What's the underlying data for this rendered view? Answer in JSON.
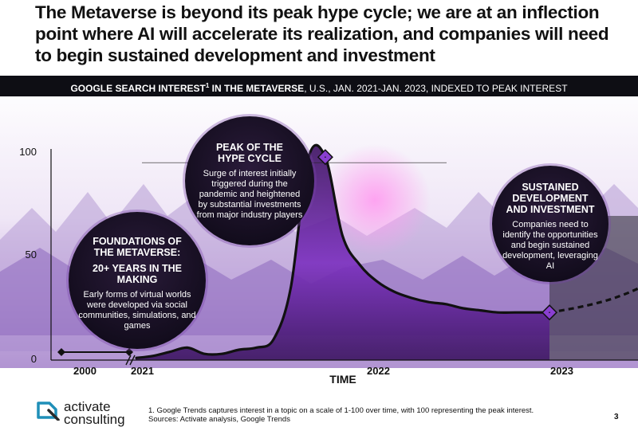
{
  "headline": "The Metaverse is beyond its peak hype cycle; we are at an inflection point where AI will accelerate its realization, and companies will need to begin sustained development and investment",
  "chart_data": {
    "type": "line",
    "title_bold": "GOOGLE SEARCH INTEREST",
    "title_sup": "1",
    "title_bold2": " IN THE METAVERSE",
    "title_rest": ", U.S., JAN. 2021-JAN. 2023, INDEXED TO PEAK INTEREST",
    "xlabel": "TIME",
    "x_ticks": [
      "2000",
      "2021",
      "2022",
      "2023"
    ],
    "y_ticks": [
      "0",
      "50",
      "100"
    ],
    "ylim": [
      0,
      100
    ],
    "series": [
      {
        "x": [
          "2021-01",
          "2021-02",
          "2021-03",
          "2021-04",
          "2021-05",
          "2021-06",
          "2021-07",
          "2021-08",
          "2021-09",
          "2021-10",
          "2021-11",
          "2021-12",
          "2022-01",
          "2022-02",
          "2022-03",
          "2022-04",
          "2022-05",
          "2022-06",
          "2022-07",
          "2022-08",
          "2022-09",
          "2022-10",
          "2022-11",
          "2022-12",
          "2023-01"
        ],
        "values": [
          1,
          2,
          4,
          6,
          3,
          3,
          5,
          6,
          10,
          35,
          97,
          98,
          60,
          46,
          38,
          33,
          30,
          28,
          27,
          25,
          24,
          23,
          23,
          23,
          23
        ]
      }
    ],
    "projection_label": "dashed trend continuing upward after 2023",
    "annotations": [
      {
        "heading": "FOUNDATIONS OF THE METAVERSE: 20+ YEARS IN THE MAKING",
        "text": "Early forms of virtual worlds were developed via social communities, simulations, and games"
      },
      {
        "heading": "PEAK OF THE HYPE CYCLE",
        "text": "Surge of interest initially triggered during the pandemic and heightened by substantial investments from major industry players"
      },
      {
        "heading": "SUSTAINED DEVELOPMENT AND INVESTMENT",
        "text": "Companies need to identify the opportunities and begin sustained development, leveraging AI"
      }
    ]
  },
  "bubbles": {
    "foundations": {
      "h1": "FOUNDATIONS OF",
      "h2": "THE METAVERSE:",
      "h3": "20+ YEARS IN THE MAKING",
      "text": "Early forms of virtual worlds were developed via social communities, simulations, and games"
    },
    "peak": {
      "h1": "PEAK OF THE",
      "h2": "HYPE CYCLE",
      "text": "Surge of interest initially triggered during the pandemic and heightened by substantial investments from major industry players"
    },
    "sustained": {
      "h1": "SUSTAINED",
      "h2": "DEVELOPMENT",
      "h3": "AND INVESTMENT",
      "text": "Companies need to identify the opportunities and begin sustained development, leveraging AI"
    }
  },
  "logo": {
    "line1": "activate",
    "line2": "consulting"
  },
  "footnote": {
    "line1": "1. Google Trends captures interest in a topic on a scale of 1-100 over time, with 100 representing the peak interest.",
    "line2": "Sources: Activate analysis, Google Trends"
  },
  "page_number": "3",
  "colors": {
    "accent": "#6b2fb3",
    "marker": "#8a3fd1",
    "dark": "#111111"
  }
}
